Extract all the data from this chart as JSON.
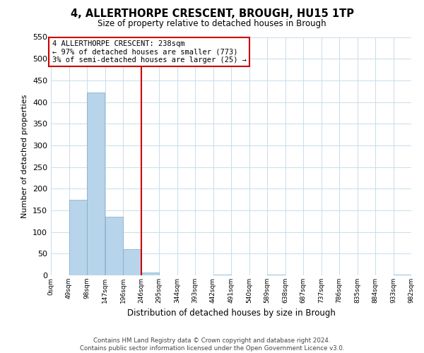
{
  "title": "4, ALLERTHORPE CRESCENT, BROUGH, HU15 1TP",
  "subtitle": "Size of property relative to detached houses in Brough",
  "xlabel": "Distribution of detached houses by size in Brough",
  "ylabel": "Number of detached properties",
  "bar_color": "#b8d4ea",
  "bar_edge_color": "#7aaac8",
  "vline_color": "#cc0000",
  "annotation_title": "4 ALLERTHORPE CRESCENT: 238sqm",
  "annotation_line1": "← 97% of detached houses are smaller (773)",
  "annotation_line2": "3% of semi-detached houses are larger (25) →",
  "annotation_box_color": "#ffffff",
  "annotation_box_edge": "#cc0000",
  "bin_edges": [
    0,
    49,
    98,
    147,
    196,
    245,
    294,
    343,
    392,
    441,
    490,
    539,
    588,
    637,
    686,
    735,
    784,
    833,
    882,
    931,
    980
  ],
  "bin_labels": [
    "0sqm",
    "49sqm",
    "98sqm",
    "147sqm",
    "196sqm",
    "246sqm",
    "295sqm",
    "344sqm",
    "393sqm",
    "442sqm",
    "491sqm",
    "540sqm",
    "589sqm",
    "638sqm",
    "687sqm",
    "737sqm",
    "786sqm",
    "835sqm",
    "884sqm",
    "933sqm",
    "982sqm"
  ],
  "counts": [
    0,
    175,
    422,
    135,
    60,
    7,
    0,
    0,
    0,
    1,
    0,
    0,
    1,
    0,
    0,
    0,
    0,
    0,
    0,
    2
  ],
  "ylim": [
    0,
    550
  ],
  "yticks": [
    0,
    50,
    100,
    150,
    200,
    250,
    300,
    350,
    400,
    450,
    500,
    550
  ],
  "vline_x_index": 5,
  "footer_line1": "Contains HM Land Registry data © Crown copyright and database right 2024.",
  "footer_line2": "Contains public sector information licensed under the Open Government Licence v3.0."
}
